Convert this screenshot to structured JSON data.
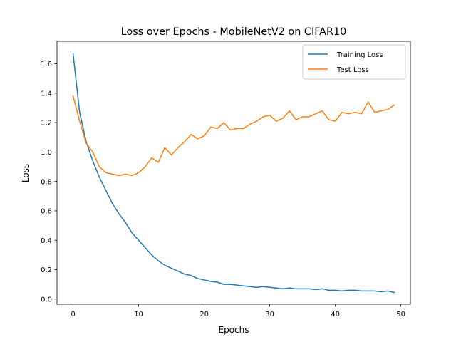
{
  "chart_data": {
    "type": "line",
    "title": "Loss over Epochs - MobileNetV2 on CIFAR10",
    "xlabel": "Epochs",
    "ylabel": "Loss",
    "xlim": [
      -2.45,
      51.45
    ],
    "ylim": [
      -0.035,
      1.753
    ],
    "xticks": [
      0,
      10,
      20,
      30,
      40,
      50
    ],
    "yticks": [
      0.0,
      0.2,
      0.4,
      0.6,
      0.8,
      1.0,
      1.2,
      1.4,
      1.6
    ],
    "ytick_labels": [
      "0.0",
      "0.2",
      "0.4",
      "0.6",
      "0.8",
      "1.0",
      "1.2",
      "1.4",
      "1.6"
    ],
    "grid": false,
    "legend_position": "upper right",
    "x": [
      0,
      1,
      2,
      3,
      4,
      5,
      6,
      7,
      8,
      9,
      10,
      11,
      12,
      13,
      14,
      15,
      16,
      17,
      18,
      19,
      20,
      21,
      22,
      23,
      24,
      25,
      26,
      27,
      28,
      29,
      30,
      31,
      32,
      33,
      34,
      35,
      36,
      37,
      38,
      39,
      40,
      41,
      42,
      43,
      44,
      45,
      46,
      47,
      48,
      49
    ],
    "series": [
      {
        "name": "Training Loss",
        "color": "#1f77b4",
        "values": [
          1.67,
          1.27,
          1.07,
          0.94,
          0.83,
          0.74,
          0.65,
          0.58,
          0.52,
          0.45,
          0.4,
          0.35,
          0.3,
          0.26,
          0.23,
          0.21,
          0.19,
          0.17,
          0.16,
          0.14,
          0.13,
          0.12,
          0.115,
          0.1,
          0.1,
          0.095,
          0.09,
          0.085,
          0.08,
          0.085,
          0.08,
          0.075,
          0.07,
          0.075,
          0.07,
          0.07,
          0.07,
          0.065,
          0.07,
          0.06,
          0.06,
          0.055,
          0.06,
          0.06,
          0.055,
          0.055,
          0.055,
          0.05,
          0.055,
          0.045
        ]
      },
      {
        "name": "Test Loss",
        "color": "#ff7f0e",
        "values": [
          1.38,
          1.21,
          1.06,
          1.0,
          0.9,
          0.86,
          0.85,
          0.84,
          0.85,
          0.84,
          0.86,
          0.9,
          0.96,
          0.93,
          1.03,
          0.98,
          1.03,
          1.07,
          1.12,
          1.09,
          1.11,
          1.17,
          1.16,
          1.2,
          1.15,
          1.16,
          1.16,
          1.19,
          1.21,
          1.24,
          1.25,
          1.21,
          1.23,
          1.28,
          1.22,
          1.24,
          1.24,
          1.26,
          1.28,
          1.22,
          1.21,
          1.27,
          1.26,
          1.27,
          1.26,
          1.34,
          1.27,
          1.28,
          1.29,
          1.32
        ]
      }
    ]
  }
}
